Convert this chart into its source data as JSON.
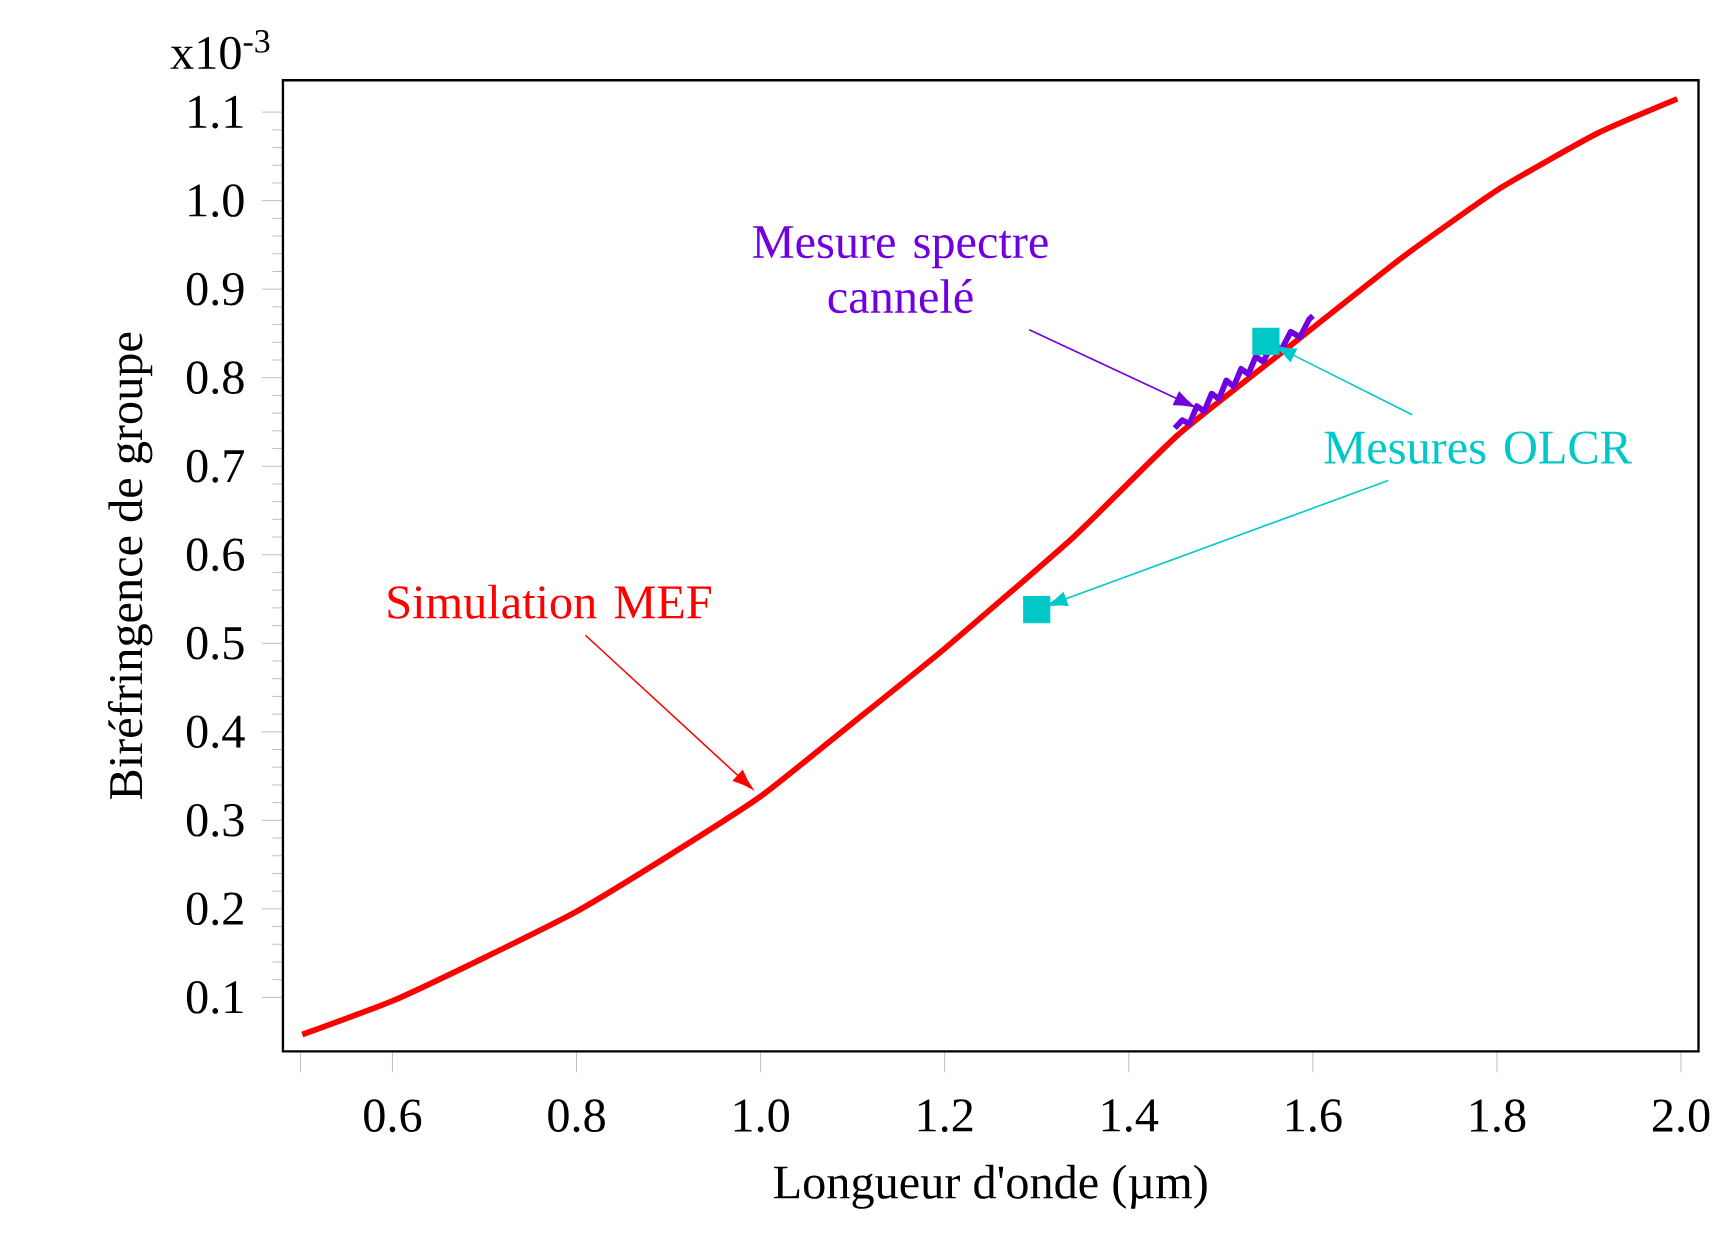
{
  "chart_data": {
    "type": "line",
    "xlabel": "Longueur d'onde (µm)",
    "ylabel": "Biréfringence de groupe",
    "xlim": [
      0.481,
      2.019
    ],
    "ylim": [
      0.039,
      1.136
    ],
    "xticks": [
      {
        "value": 0.5,
        "label": null
      },
      0.6,
      0.8,
      {
        "value": 1.0,
        "label": "1.0"
      },
      1.2,
      1.4,
      1.6,
      1.8,
      {
        "value": 2.0,
        "label": "2.0"
      }
    ],
    "yticks": [
      0.1,
      0.2,
      0.3,
      0.4,
      0.5,
      0.6,
      0.7,
      0.8,
      0.9,
      {
        "value": 1.0,
        "label": "1.0"
      },
      1.1
    ],
    "annotations": [
      "x10$^{-3}$"
    ],
    "grid": false,
    "series": [
      {
        "name": "Simulation MEF",
        "color": "#ff0000",
        "type": "line",
        "marker": "none",
        "x": [
          0.502,
          0.6,
          0.7,
          0.8,
          0.9,
          1.0,
          1.1,
          1.2,
          1.34,
          1.453,
          1.568,
          1.696,
          1.802,
          1.909,
          1.996
        ],
        "values": [
          0.058,
          0.096,
          0.145,
          0.197,
          0.26,
          0.327,
          0.41,
          0.494,
          0.62,
          0.735,
          0.83,
          0.935,
          1.013,
          1.076,
          1.115
        ]
      },
      {
        "name": "Mesure spectre cannelé",
        "color": "#7000e0",
        "type": "line",
        "marker": "none",
        "x": [
          1.45,
          1.458,
          1.466,
          1.474,
          1.482,
          1.49,
          1.498,
          1.506,
          1.514,
          1.522,
          1.53,
          1.538,
          1.546,
          1.556,
          1.566,
          1.576,
          1.586,
          1.596,
          1.6
        ],
        "values": [
          0.743,
          0.752,
          0.748,
          0.768,
          0.762,
          0.782,
          0.776,
          0.797,
          0.79,
          0.81,
          0.804,
          0.824,
          0.818,
          0.838,
          0.832,
          0.852,
          0.846,
          0.866,
          0.87
        ]
      },
      {
        "name": "Mesures OLCR",
        "color": "#00c8c8",
        "type": "scatter",
        "marker": "square",
        "x": [
          1.549,
          1.3
        ],
        "values": [
          0.841,
          0.538
        ]
      }
    ]
  }
}
